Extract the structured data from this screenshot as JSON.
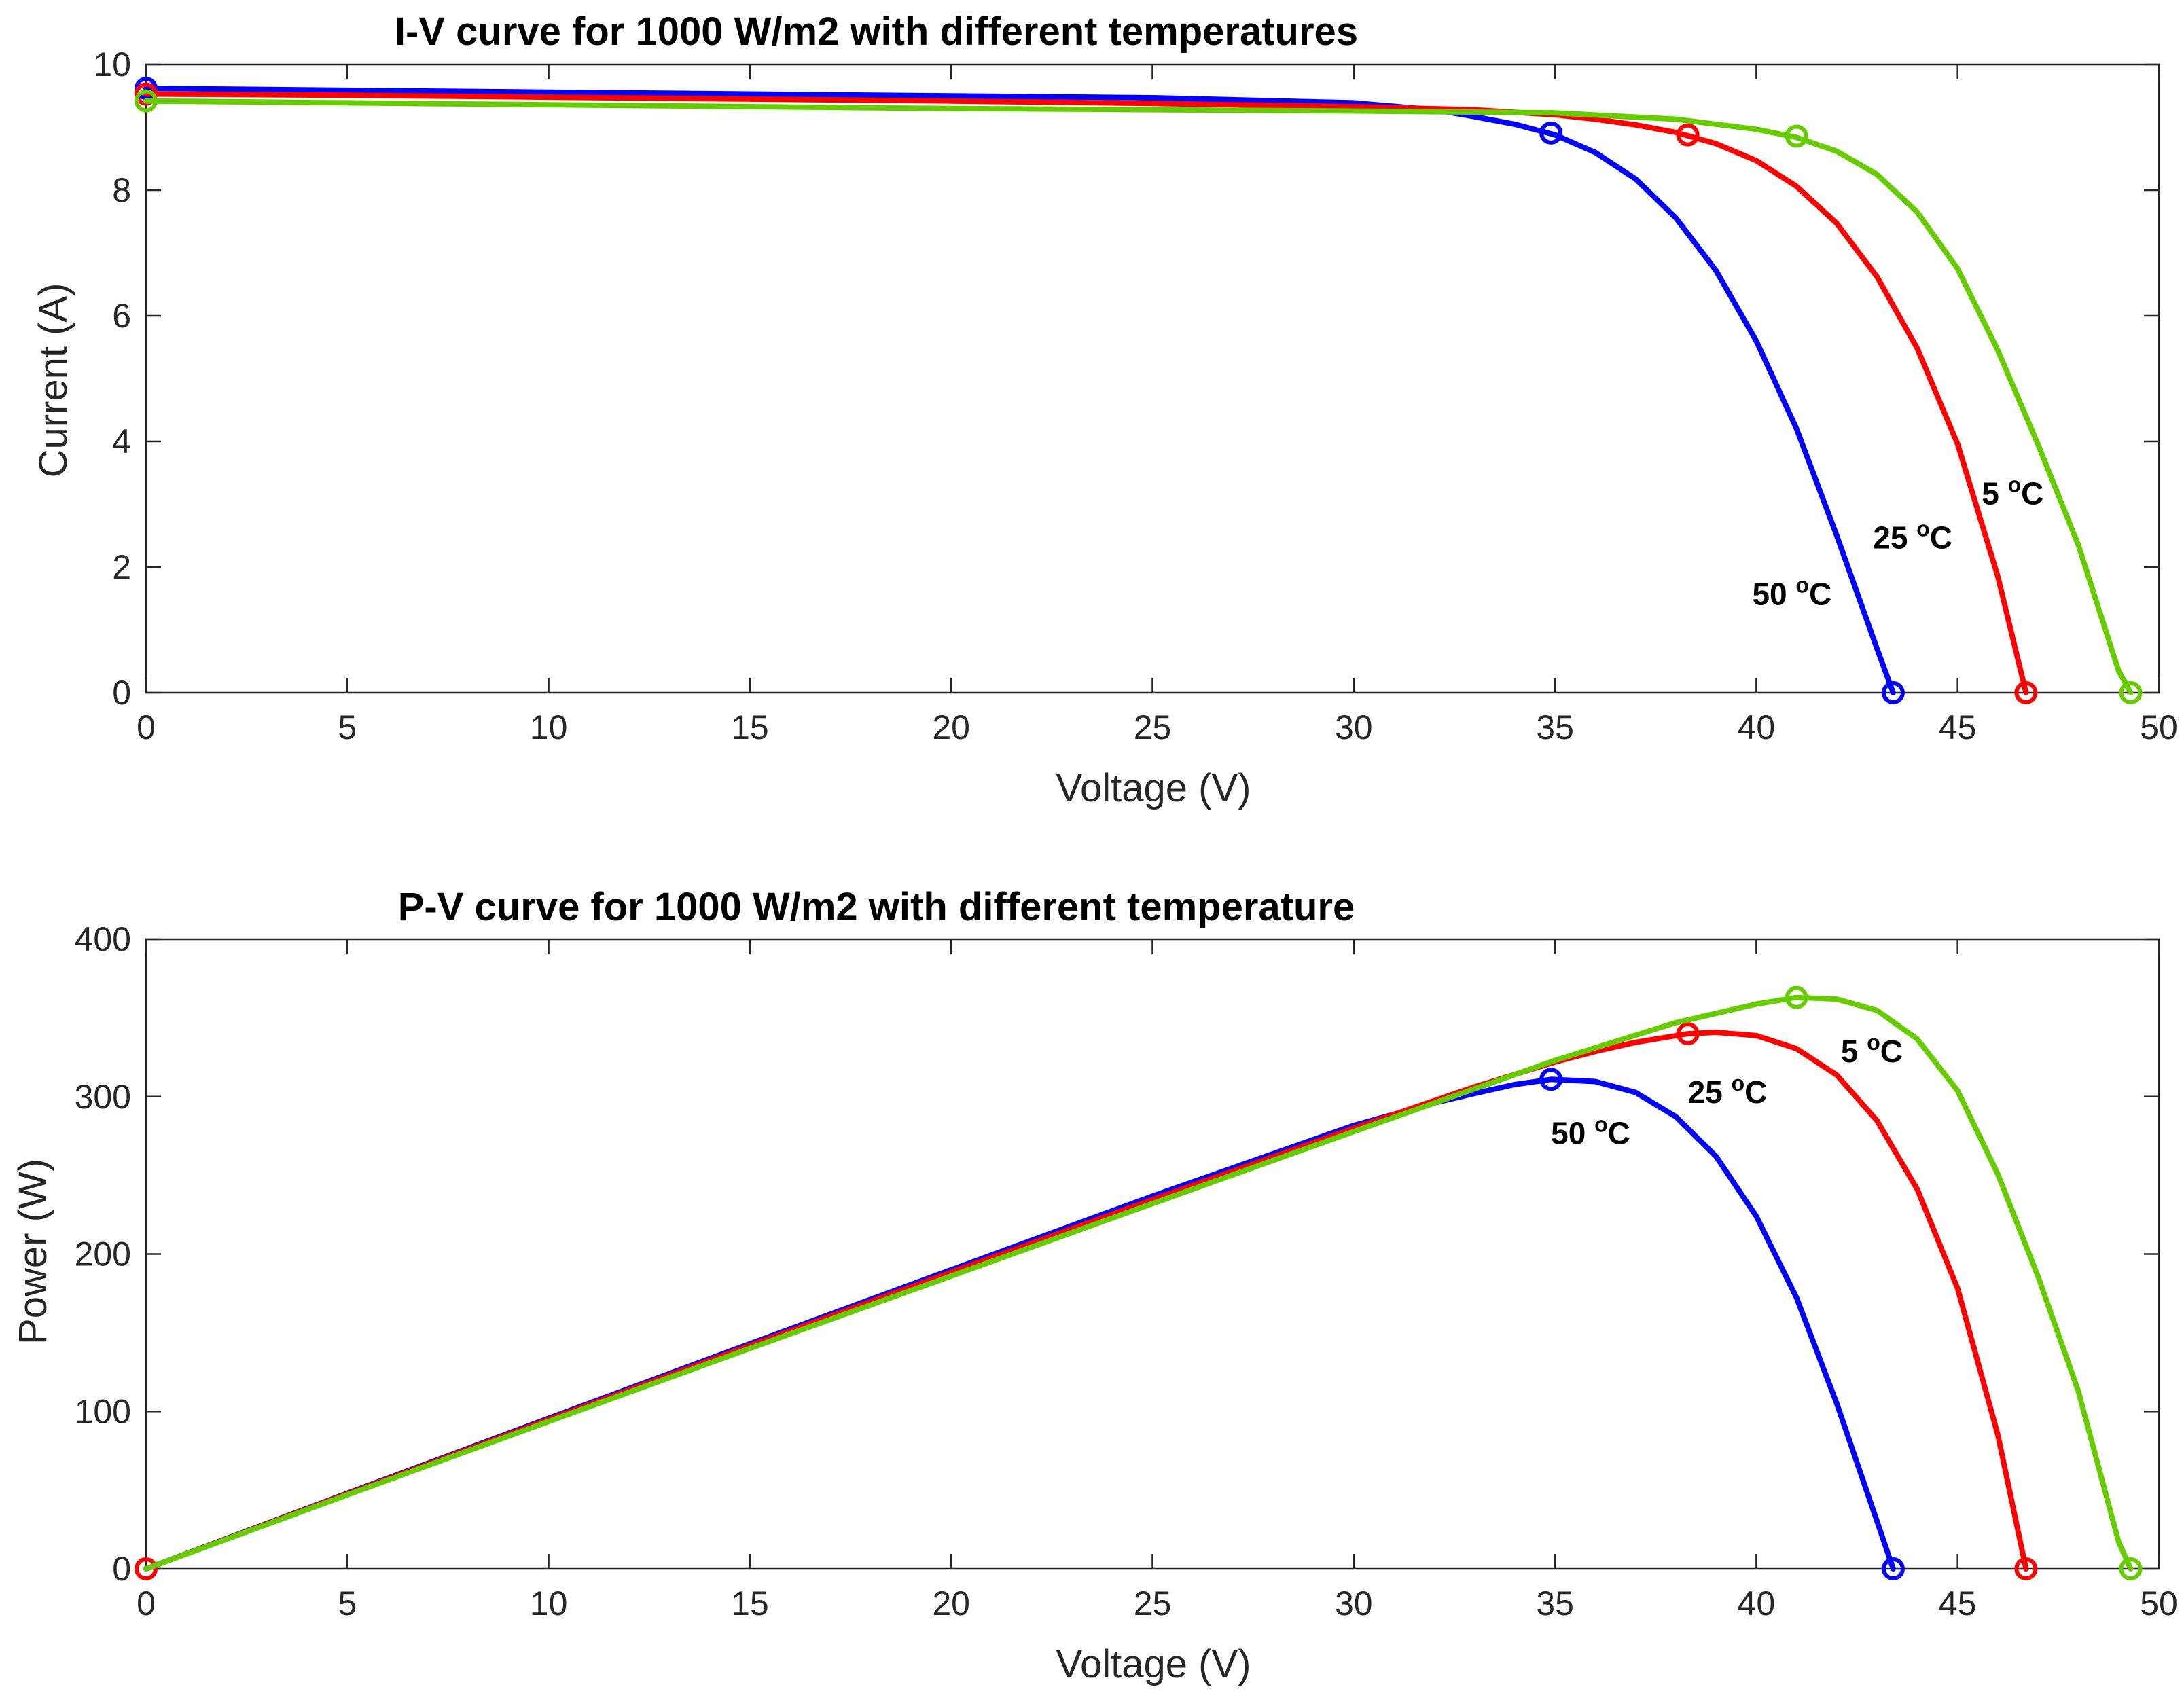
{
  "chart_data": [
    {
      "type": "line",
      "title": "I-V curve for 1000 W/m2 with different temperatures",
      "xlabel": "Voltage (V)",
      "ylabel": "Current (A)",
      "xlim": [
        0,
        50
      ],
      "ylim": [
        0,
        10
      ],
      "xticks": [
        0,
        5,
        10,
        15,
        20,
        25,
        30,
        35,
        40,
        45,
        50
      ],
      "yticks": [
        0,
        2,
        4,
        6,
        8,
        10
      ],
      "grid": false,
      "series": [
        {
          "name": "50 °C",
          "color": "#0000ff",
          "x": [
            0,
            5,
            10,
            15,
            20,
            25,
            30,
            32,
            33,
            34,
            35,
            36,
            37,
            38,
            39,
            40,
            41,
            42,
            42.5,
            43,
            43.4
          ],
          "y": [
            9.62,
            9.59,
            9.56,
            9.53,
            9.5,
            9.47,
            9.39,
            9.28,
            9.17,
            9.05,
            8.88,
            8.6,
            8.18,
            7.56,
            6.72,
            5.6,
            4.2,
            2.5,
            1.6,
            0.7,
            0
          ],
          "markers": [
            {
              "x": 0,
              "y": 9.62
            },
            {
              "x": 34.9,
              "y": 8.91
            },
            {
              "x": 43.4,
              "y": 0
            }
          ]
        },
        {
          "name": "25 °C",
          "color": "#ff0000",
          "x": [
            0,
            5,
            10,
            15,
            20,
            25,
            30,
            33,
            35,
            36,
            37,
            38,
            39,
            40,
            41,
            42,
            43,
            44,
            45,
            46,
            46.7
          ],
          "y": [
            9.53,
            9.51,
            9.48,
            9.45,
            9.42,
            9.38,
            9.33,
            9.28,
            9.2,
            9.13,
            9.04,
            8.92,
            8.74,
            8.47,
            8.06,
            7.47,
            6.62,
            5.48,
            3.96,
            1.85,
            0
          ],
          "markers": [
            {
              "x": 0,
              "y": 9.53
            },
            {
              "x": 38.3,
              "y": 8.88
            },
            {
              "x": 46.7,
              "y": 0
            }
          ]
        },
        {
          "name": "5 °C",
          "color": "#66cc00",
          "x": [
            0,
            5,
            10,
            15,
            20,
            25,
            30,
            35,
            38,
            40,
            41,
            42,
            43,
            44,
            45,
            46,
            47,
            48,
            49,
            49.3
          ],
          "y": [
            9.42,
            9.39,
            9.36,
            9.33,
            9.3,
            9.28,
            9.26,
            9.23,
            9.13,
            8.97,
            8.84,
            8.62,
            8.25,
            7.65,
            6.75,
            5.45,
            3.95,
            2.35,
            0.35,
            0
          ],
          "markers": [
            {
              "x": 0,
              "y": 9.42
            },
            {
              "x": 41.0,
              "y": 8.86
            },
            {
              "x": 49.3,
              "y": 0
            }
          ]
        }
      ],
      "annotations": [
        {
          "text": "50 ",
          "sup": "o",
          "unit": "C",
          "x": 39.9,
          "y": 1.4
        },
        {
          "text": "25 ",
          "sup": "o",
          "unit": "C",
          "x": 42.9,
          "y": 2.3
        },
        {
          "text": "5 ",
          "sup": "o",
          "unit": "C",
          "x": 45.6,
          "y": 3.0
        }
      ]
    },
    {
      "type": "line",
      "title": "P-V curve for 1000 W/m2 with different temperature",
      "xlabel": "Voltage (V)",
      "ylabel": "Power (W)",
      "xlim": [
        0,
        50
      ],
      "ylim": [
        0,
        400
      ],
      "xticks": [
        0,
        5,
        10,
        15,
        20,
        25,
        30,
        35,
        40,
        45,
        50
      ],
      "yticks": [
        0,
        100,
        200,
        300,
        400
      ],
      "grid": false,
      "series": [
        {
          "name": "50 °C",
          "color": "#0000ff",
          "x": [
            0,
            5,
            10,
            15,
            20,
            25,
            30,
            32,
            33,
            34,
            34.9,
            36,
            37,
            38,
            39,
            40,
            41,
            42,
            43,
            43.4
          ],
          "y": [
            0,
            48,
            95.6,
            143,
            190,
            236.8,
            281.7,
            296,
            302,
            307.7,
            311,
            309.6,
            302.7,
            287.3,
            262.1,
            224,
            172.2,
            105,
            30.1,
            0
          ],
          "markers": [
            {
              "x": 34.9,
              "y": 311
            },
            {
              "x": 43.4,
              "y": 0
            }
          ]
        },
        {
          "name": "25 °C",
          "color": "#ff0000",
          "x": [
            0,
            5,
            10,
            15,
            20,
            25,
            30,
            33,
            35,
            36,
            37,
            38.3,
            39,
            40,
            41,
            42,
            43,
            44,
            45,
            46,
            46.7
          ],
          "y": [
            0,
            47.6,
            94.8,
            141.8,
            188.4,
            234.5,
            279.9,
            306.2,
            322,
            328.7,
            334.5,
            340,
            340.9,
            338.8,
            330.5,
            313.7,
            284.7,
            241.1,
            178.2,
            85.1,
            0
          ],
          "markers": [
            {
              "x": 0,
              "y": 0
            },
            {
              "x": 38.3,
              "y": 340
            },
            {
              "x": 46.7,
              "y": 0
            }
          ]
        },
        {
          "name": "5 °C",
          "color": "#66cc00",
          "x": [
            0,
            5,
            10,
            15,
            20,
            25,
            30,
            35,
            38,
            40,
            41,
            42,
            43,
            44,
            45,
            46,
            47,
            48,
            49,
            49.3
          ],
          "y": [
            0,
            47,
            93.6,
            140,
            186,
            232,
            277.8,
            323,
            347,
            358.8,
            363,
            362,
            354.8,
            336.6,
            303.8,
            250.7,
            185.7,
            112.8,
            17.2,
            0
          ],
          "markers": [
            {
              "x": 41.0,
              "y": 363
            },
            {
              "x": 49.3,
              "y": 0
            }
          ]
        }
      ],
      "annotations": [
        {
          "text": "50 ",
          "sup": "o",
          "unit": "C",
          "x": 34.9,
          "y": 270
        },
        {
          "text": "25 ",
          "sup": "o",
          "unit": "C",
          "x": 38.3,
          "y": 296
        },
        {
          "text": "5 ",
          "sup": "o",
          "unit": "C",
          "x": 42.1,
          "y": 322
        }
      ]
    }
  ]
}
